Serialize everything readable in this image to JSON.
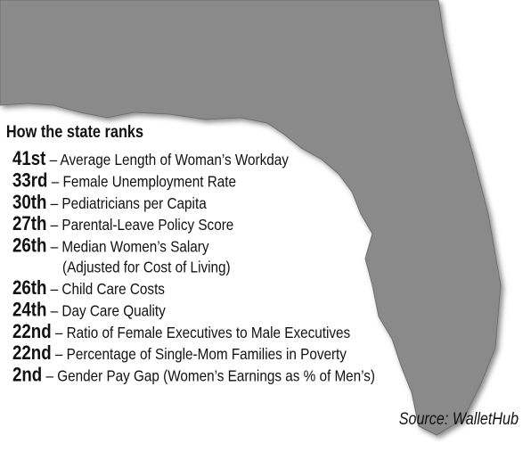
{
  "heading": "How the state ranks",
  "ranks": [
    {
      "rank": "41st",
      "label": "– Average Length of Woman’s Workday"
    },
    {
      "rank": "33rd",
      "label": "– Female Unemployment Rate"
    },
    {
      "rank": "30th",
      "label": "– Pediatricians per Capita"
    },
    {
      "rank": "27th",
      "label": "– Parental-Leave Policy Score"
    },
    {
      "rank": "26th",
      "label": "– Median Women’s Salary",
      "label_continued": "(Adjusted for Cost of Living)"
    },
    {
      "rank": "26th",
      "label": "– Child Care Costs"
    },
    {
      "rank": "24th",
      "label": "– Day Care Quality"
    },
    {
      "rank": "22nd",
      "label": "– Ratio of Female Executives to Male Executives"
    },
    {
      "rank": "22nd",
      "label": "– Percentage of Single-Mom Families in Poverty"
    },
    {
      "rank": "2nd",
      "label": "– Gender Pay Gap (Women’s Earnings as % of Men’s)"
    }
  ],
  "source": "Source: WalletHub"
}
